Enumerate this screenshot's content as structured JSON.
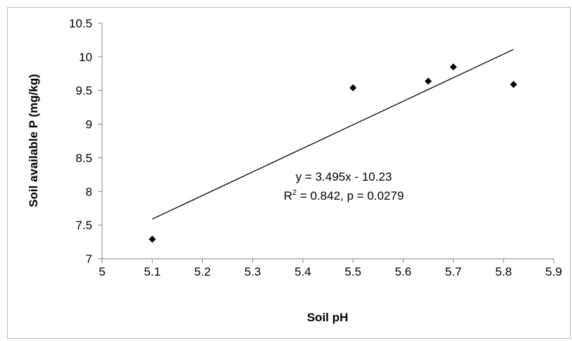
{
  "chart_data": {
    "type": "scatter",
    "title": "",
    "xlabel": "Soil pH",
    "ylabel": "Soil available P (mg/kg)",
    "xlim": [
      5,
      5.9
    ],
    "ylim": [
      7,
      10.5
    ],
    "x_ticks": [
      "5",
      "5.1",
      "5.2",
      "5.3",
      "5.4",
      "5.5",
      "5.6",
      "5.7",
      "5.8",
      "5.9"
    ],
    "y_ticks": [
      "7",
      "7.5",
      "8",
      "8.5",
      "9",
      "9.5",
      "10",
      "10.5"
    ],
    "grid": false,
    "legend": "none",
    "marker": "diamond",
    "marker_color": "#000000",
    "series": [
      {
        "x": [
          5.1,
          5.5,
          5.65,
          5.7,
          5.82
        ],
        "y": [
          7.29,
          9.54,
          9.64,
          9.85,
          9.59
        ]
      }
    ],
    "trendline": {
      "x": [
        5.1,
        5.82
      ],
      "y": [
        7.59,
        10.11
      ]
    },
    "annotations": {
      "equation": "y = 3.495x - 10.23",
      "r2_prefix": "R",
      "r2_superscript": "2",
      "r2_suffix": " = 0.842, p = 0.0279"
    }
  }
}
